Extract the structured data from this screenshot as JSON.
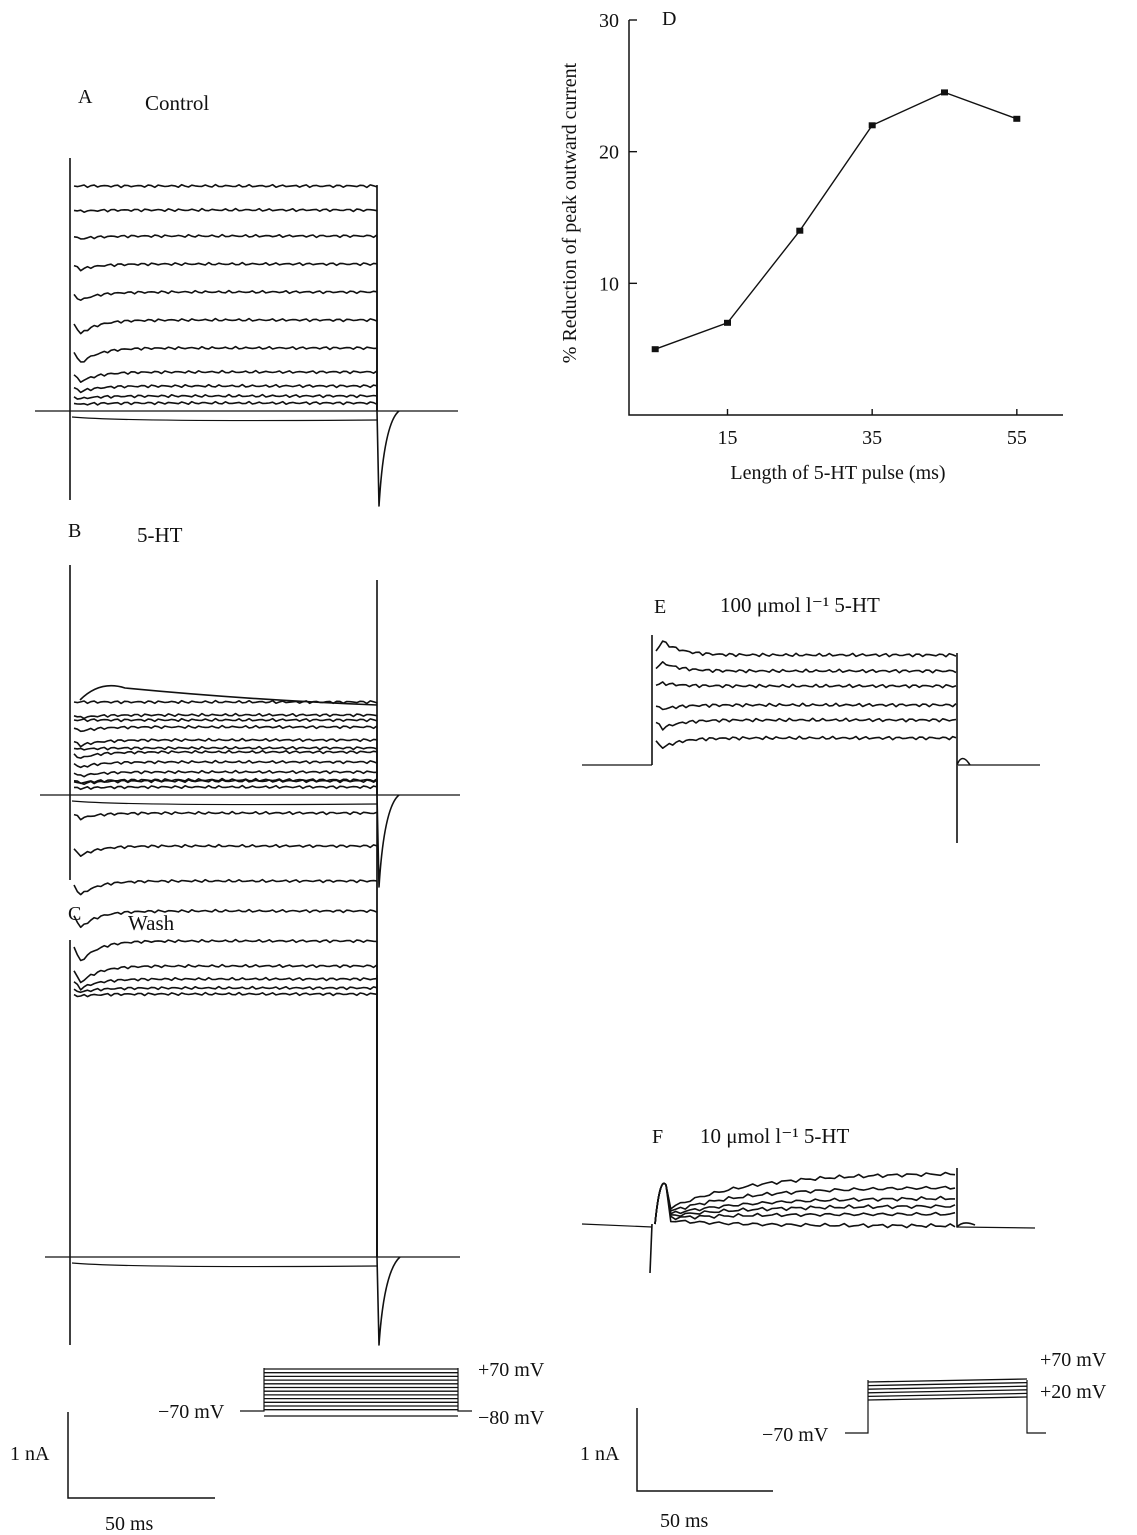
{
  "panels": {
    "A": {
      "letter": "A",
      "label": "Control"
    },
    "B": {
      "letter": "B",
      "label": "5-HT"
    },
    "C": {
      "letter": "C",
      "label": "Wash"
    },
    "D": {
      "letter": "D"
    },
    "E": {
      "letter": "E",
      "label": "100 μmol l⁻¹ 5-HT"
    },
    "F": {
      "letter": "F",
      "label": "10 μmol l⁻¹ 5-HT"
    }
  },
  "protocol_left": {
    "high": "+70 mV",
    "hold": "−70 mV",
    "low": "−80 mV"
  },
  "protocol_right": {
    "high": "+70 mV",
    "low": "+20 mV",
    "hold": "−70 mV"
  },
  "scalebar_left": {
    "current": "1 nA",
    "time": "50 ms"
  },
  "scalebar_right": {
    "current": "1 nA",
    "time": "50 ms"
  },
  "chart_data": {
    "type": "line",
    "xlabel": "Length of 5-HT pulse (ms)",
    "ylabel": "% Reduction of peak outward current",
    "x_ticks": [
      15,
      35,
      55
    ],
    "y_ticks": [
      10,
      20,
      30
    ],
    "xlim": [
      0,
      60
    ],
    "ylim": [
      0,
      30
    ],
    "x": [
      5,
      15,
      25,
      35,
      45,
      55
    ],
    "y": [
      5,
      7,
      14,
      22,
      24.5,
      22.5
    ]
  }
}
